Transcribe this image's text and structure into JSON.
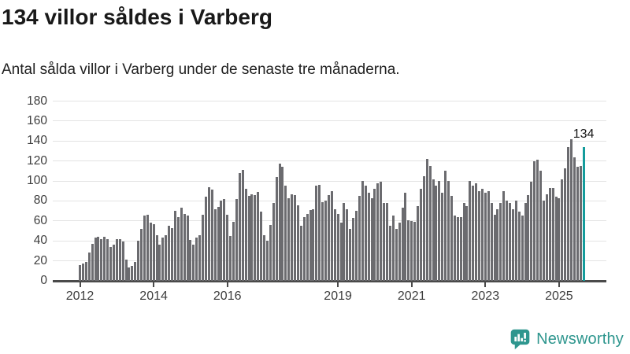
{
  "header": {
    "title": "134 villor såldes i Varberg",
    "subtitle": "Antal sålda villor i Varberg under de senaste tre månaderna."
  },
  "chart_data": {
    "type": "bar",
    "title": "134 villor såldes i Varberg",
    "subtitle": "Antal sålda villor i Varberg under de senaste tre månaderna.",
    "x_unit": "month",
    "x_start": "2012-01",
    "x_end": "2025-09",
    "ylim": [
      0,
      180
    ],
    "grid": true,
    "y_ticks": [
      0,
      20,
      40,
      60,
      80,
      100,
      120,
      140,
      160,
      180
    ],
    "x_ticks": [
      {
        "label": "2012",
        "index": 0
      },
      {
        "label": "2014",
        "index": 24
      },
      {
        "label": "2016",
        "index": 48
      },
      {
        "label": "2019",
        "index": 84
      },
      {
        "label": "2021",
        "index": 108
      },
      {
        "label": "2023",
        "index": 132
      },
      {
        "label": "2025",
        "index": 156
      }
    ],
    "values": [
      16,
      17,
      19,
      28,
      37,
      43,
      44,
      42,
      44,
      42,
      34,
      36,
      42,
      42,
      39,
      21,
      13,
      15,
      19,
      40,
      52,
      65,
      66,
      58,
      57,
      46,
      36,
      43,
      46,
      55,
      53,
      70,
      64,
      73,
      67,
      65,
      41,
      36,
      43,
      46,
      66,
      84,
      94,
      91,
      72,
      74,
      80,
      82,
      66,
      45,
      59,
      82,
      108,
      111,
      92,
      85,
      87,
      86,
      89,
      69,
      46,
      40,
      56,
      78,
      104,
      117,
      114,
      95,
      83,
      87,
      86,
      76,
      55,
      64,
      67,
      71,
      72,
      95,
      96,
      79,
      80,
      86,
      90,
      72,
      67,
      58,
      78,
      72,
      52,
      63,
      70,
      85,
      100,
      95,
      88,
      83,
      92,
      98,
      99,
      78,
      78,
      55,
      65,
      52,
      58,
      73,
      88,
      61,
      60,
      59,
      75,
      92,
      105,
      122,
      115,
      102,
      95,
      100,
      88,
      110,
      100,
      85,
      65,
      64,
      64,
      78,
      75,
      100,
      95,
      98,
      90,
      92,
      88,
      90,
      78,
      66,
      72,
      78,
      90,
      80,
      78,
      72,
      80,
      69,
      65,
      78,
      86,
      99,
      120,
      121,
      110,
      80,
      87,
      93,
      93,
      84,
      83,
      102,
      113,
      134,
      142,
      124,
      114,
      115,
      134
    ],
    "highlight": {
      "index": 164,
      "value": 134,
      "label": "134",
      "color": "#149c9c"
    },
    "bar_color": "#6b6b6f",
    "grid_color": "#e3e3e3",
    "axis_color": "#4a4a4a",
    "axis_label_color": "#3d3d3d",
    "value_label_color": "#141414"
  },
  "footer": {
    "brand": "Newsworthy",
    "brand_color": "#2e968e",
    "logo_icon": "bar-chart-speech-bubble-icon"
  }
}
